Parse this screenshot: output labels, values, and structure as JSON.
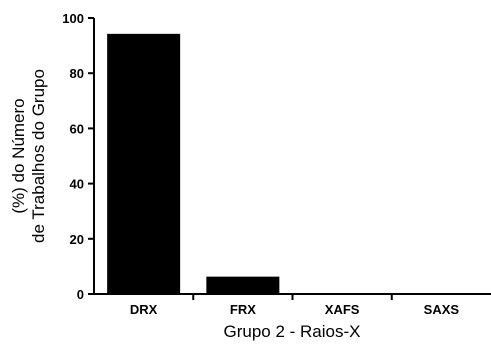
{
  "chart_data": {
    "type": "bar",
    "categories": [
      "DRX",
      "FRX",
      "XAFS",
      "SAXS"
    ],
    "values": [
      94,
      6,
      0,
      0
    ],
    "xlabel": "Grupo 2 - Raios-X",
    "ylabel": [
      "(%) do Número",
      "de Trabalhos do Grupo"
    ],
    "ylim": [
      0,
      100
    ],
    "yticks": [
      0,
      20,
      40,
      60,
      80,
      100
    ],
    "grid": false,
    "legend": "none",
    "bar_color": "#000000"
  }
}
